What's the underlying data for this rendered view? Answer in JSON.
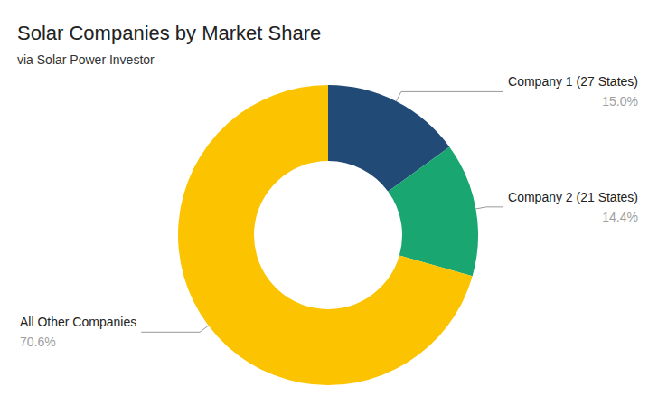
{
  "chart_data": {
    "type": "donut",
    "title": "Solar Companies by Market Share",
    "subtitle": "via Solar Power Investor",
    "categories": [
      "Company 1 (27 States)",
      "Company 2 (21 States)",
      "All Other Companies"
    ],
    "values": [
      15.0,
      14.4,
      70.6
    ],
    "value_labels": [
      "15.0%",
      "14.4%",
      "70.6%"
    ],
    "colors": [
      "#214a77",
      "#1aa670",
      "#fcc300"
    ],
    "data_labels": true
  }
}
